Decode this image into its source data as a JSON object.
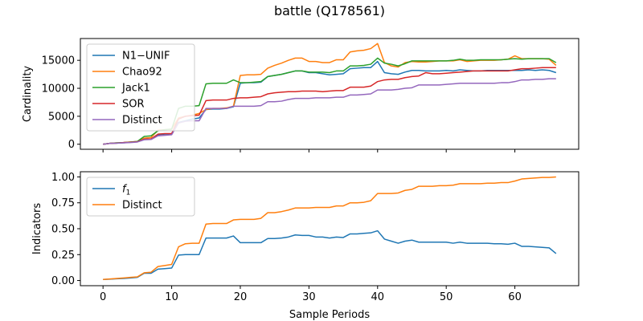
{
  "chart_data": {
    "title": "battle (Q178561)",
    "xlabel": "Sample Periods",
    "x": [
      0,
      1,
      2,
      3,
      4,
      5,
      6,
      7,
      8,
      9,
      10,
      11,
      12,
      13,
      14,
      15,
      16,
      17,
      18,
      19,
      20,
      21,
      22,
      23,
      24,
      25,
      26,
      27,
      28,
      29,
      30,
      31,
      32,
      33,
      34,
      35,
      36,
      37,
      38,
      39,
      40,
      41,
      42,
      43,
      44,
      45,
      46,
      47,
      48,
      49,
      50,
      51,
      52,
      53,
      54,
      55,
      56,
      57,
      58,
      59,
      60,
      61,
      62,
      63,
      64,
      65,
      66
    ],
    "xlim": [
      -3.3,
      69.3
    ],
    "xticks": [
      0,
      10,
      20,
      30,
      40,
      50,
      60
    ],
    "charts": [
      {
        "name": "cardinality",
        "type": "line",
        "ylabel": "Cardinality",
        "ylim": [
          -900,
          18900
        ],
        "yticks": [
          0,
          5000,
          10000,
          15000
        ],
        "legend": "upper-left",
        "series": [
          {
            "name": "N1−UNIF",
            "color": "#1f77b4",
            "values": [
              0,
              150,
              200,
              250,
              350,
              450,
              900,
              950,
              1700,
              1800,
              1800,
              3900,
              4200,
              4500,
              4700,
              6200,
              6300,
              6300,
              6400,
              6700,
              10900,
              11000,
              11000,
              11100,
              12100,
              12300,
              12500,
              12800,
              13100,
              13100,
              12800,
              12800,
              12600,
              12400,
              12500,
              12600,
              13500,
              13600,
              13700,
              13700,
              14800,
              12800,
              12600,
              12500,
              12900,
              13200,
              13200,
              13100,
              13100,
              13100,
              13200,
              13100,
              13300,
              13200,
              13100,
              13100,
              13200,
              13200,
              13200,
              13200,
              13200,
              13200,
              13300,
              13200,
              13300,
              13200,
              12800
            ]
          },
          {
            "name": "Chao92",
            "color": "#ff7f0e",
            "values": [
              0,
              150,
              250,
              300,
              400,
              500,
              1100,
              1200,
              2500,
              2600,
              2700,
              4700,
              5000,
              5200,
              5500,
              6200,
              6400,
              6400,
              6500,
              6800,
              12300,
              12400,
              12400,
              12500,
              13600,
              14100,
              14500,
              15000,
              15400,
              15400,
              14800,
              14800,
              14600,
              14600,
              15100,
              15100,
              16500,
              16700,
              16800,
              17100,
              18000,
              14600,
              14000,
              13800,
              14600,
              14800,
              14700,
              14700,
              14800,
              14900,
              14900,
              14900,
              15100,
              14800,
              14900,
              15000,
              15000,
              15000,
              15100,
              15200,
              15800,
              15300,
              15300,
              15300,
              15300,
              15200,
              14100
            ]
          },
          {
            "name": "Jack1",
            "color": "#2ca02c",
            "values": [
              0,
              150,
              250,
              300,
              400,
              500,
              1400,
              1500,
              2400,
              2600,
              2700,
              6400,
              6800,
              6800,
              6900,
              10800,
              10900,
              10900,
              10900,
              11500,
              11000,
              11000,
              11100,
              11200,
              12100,
              12300,
              12500,
              12800,
              13100,
              13100,
              12900,
              12900,
              12900,
              12800,
              13100,
              13100,
              14000,
              14000,
              14100,
              14300,
              15400,
              14500,
              14300,
              14000,
              14400,
              14900,
              14900,
              14900,
              14900,
              14900,
              14900,
              15000,
              15200,
              15000,
              15000,
              15100,
              15100,
              15100,
              15100,
              15200,
              15300,
              15200,
              15300,
              15300,
              15300,
              15300,
              14600
            ]
          },
          {
            "name": "SOR",
            "color": "#d62728",
            "values": [
              0,
              150,
              200,
              300,
              350,
              450,
              900,
              950,
              1800,
              1900,
              1900,
              4500,
              5000,
              5100,
              5200,
              7800,
              7900,
              7900,
              7900,
              8200,
              8300,
              8300,
              8400,
              8500,
              9000,
              9200,
              9300,
              9400,
              9400,
              9500,
              9500,
              9500,
              9400,
              9500,
              9600,
              9600,
              10200,
              10200,
              10200,
              10400,
              11200,
              11500,
              11600,
              11600,
              11900,
              12100,
              12200,
              12800,
              12600,
              12600,
              12700,
              12800,
              12900,
              13000,
              13100,
              13100,
              13100,
              13100,
              13100,
              13100,
              13300,
              13500,
              13500,
              13600,
              13700,
              13700,
              13700
            ]
          },
          {
            "name": "Distinct",
            "color": "#9467bd",
            "values": [
              0,
              150,
              200,
              250,
              300,
              400,
              800,
              850,
              1500,
              1600,
              1700,
              3800,
              4100,
              4200,
              4200,
              6400,
              6400,
              6400,
              6400,
              6800,
              6800,
              6800,
              6800,
              6900,
              7600,
              7600,
              7700,
              8000,
              8200,
              8200,
              8200,
              8300,
              8300,
              8300,
              8400,
              8400,
              8800,
              8800,
              8900,
              9000,
              9700,
              9700,
              9700,
              9800,
              10000,
              10100,
              10600,
              10600,
              10600,
              10600,
              10700,
              10800,
              10900,
              10900,
              10900,
              10900,
              10900,
              10900,
              11000,
              11000,
              11200,
              11500,
              11500,
              11600,
              11600,
              11700,
              11700
            ]
          }
        ]
      },
      {
        "name": "indicators",
        "type": "line",
        "ylabel": "Indicators",
        "ylim": [
          -0.05,
          1.05
        ],
        "yticks": [
          0.0,
          0.25,
          0.5,
          0.75,
          1.0
        ],
        "ytick_labels": [
          "0.00",
          "0.25",
          "0.50",
          "0.75",
          "1.00"
        ],
        "legend": "upper-left",
        "series": [
          {
            "name": "f1",
            "color": "#1f77b4",
            "values": [
              0.01,
              0.013,
              0.017,
              0.02,
              0.025,
              0.03,
              0.07,
              0.07,
              0.11,
              0.115,
              0.12,
              0.245,
              0.25,
              0.25,
              0.25,
              0.41,
              0.41,
              0.41,
              0.41,
              0.43,
              0.365,
              0.365,
              0.365,
              0.365,
              0.405,
              0.405,
              0.41,
              0.42,
              0.44,
              0.435,
              0.435,
              0.42,
              0.42,
              0.41,
              0.42,
              0.415,
              0.45,
              0.45,
              0.455,
              0.46,
              0.48,
              0.4,
              0.38,
              0.36,
              0.38,
              0.39,
              0.37,
              0.37,
              0.37,
              0.37,
              0.37,
              0.36,
              0.37,
              0.36,
              0.36,
              0.36,
              0.36,
              0.355,
              0.355,
              0.35,
              0.36,
              0.33,
              0.33,
              0.325,
              0.32,
              0.315,
              0.26
            ]
          },
          {
            "name": "Distinct",
            "color": "#ff7f0e",
            "values": [
              0.01,
              0.015,
              0.02,
              0.025,
              0.03,
              0.035,
              0.075,
              0.08,
              0.135,
              0.145,
              0.155,
              0.325,
              0.355,
              0.36,
              0.36,
              0.545,
              0.55,
              0.55,
              0.55,
              0.585,
              0.59,
              0.59,
              0.59,
              0.6,
              0.655,
              0.655,
              0.665,
              0.68,
              0.7,
              0.7,
              0.7,
              0.705,
              0.705,
              0.705,
              0.72,
              0.72,
              0.75,
              0.75,
              0.755,
              0.77,
              0.84,
              0.84,
              0.84,
              0.845,
              0.87,
              0.88,
              0.91,
              0.91,
              0.91,
              0.915,
              0.915,
              0.92,
              0.935,
              0.935,
              0.935,
              0.935,
              0.94,
              0.94,
              0.945,
              0.945,
              0.96,
              0.98,
              0.985,
              0.99,
              0.995,
              0.995,
              1.0
            ]
          }
        ]
      }
    ]
  }
}
